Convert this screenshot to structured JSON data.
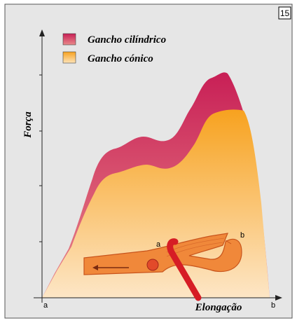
{
  "badge": "15",
  "legend": {
    "items": [
      {
        "label": "Gancho cilíndrico"
      },
      {
        "label": "Gancho cónico"
      }
    ]
  },
  "axes": {
    "y_label": "Força",
    "x_label": "Elongação",
    "x_start": "a",
    "x_end": "b"
  },
  "hook": {
    "label_a": "a",
    "label_b": "b"
  }
}
